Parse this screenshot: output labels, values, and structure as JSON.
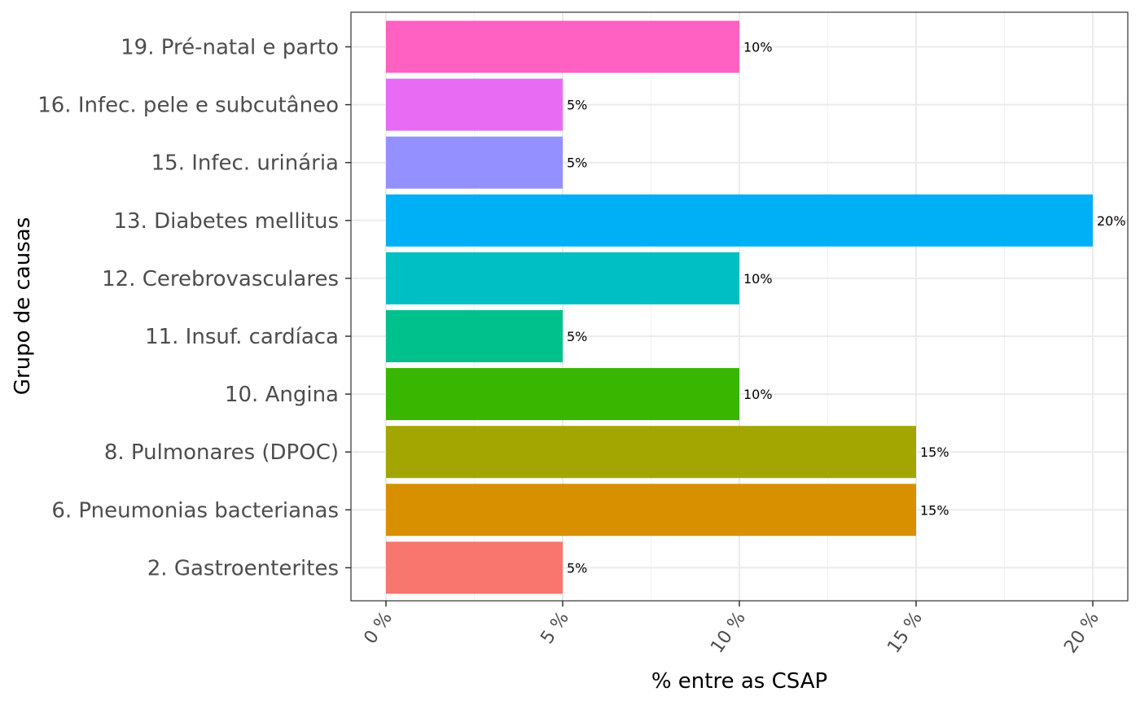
{
  "chart_data": {
    "type": "bar",
    "orientation": "horizontal",
    "title": "",
    "xlabel": "% entre as CSAP",
    "ylabel": "Grupo de causas",
    "xlim": [
      0,
      20
    ],
    "x_ticks": [
      0,
      5,
      10,
      15,
      20
    ],
    "x_tick_labels": [
      "0 %",
      "5 %",
      "10 %",
      "15 %",
      "20 %"
    ],
    "grid": true,
    "legend": "none",
    "categories": [
      "19. Pré-natal e parto",
      "16. Infec. pele e subcutâneo",
      "15. Infec. urinária",
      "13. Diabetes mellitus",
      "12. Cerebrovasculares",
      "11. Insuf. cardíaca",
      "10. Angina",
      "8. Pulmonares (DPOC)",
      "6. Pneumonias bacterianas",
      "2. Gastroenterites"
    ],
    "values": [
      10,
      5,
      5,
      20,
      10,
      5,
      10,
      15,
      15,
      5
    ],
    "data_labels": [
      "10%",
      "5%",
      "5%",
      "20%",
      "10%",
      "5%",
      "10%",
      "15%",
      "15%",
      "5%"
    ],
    "colors": [
      "#FF61C3",
      "#E76BF3",
      "#9590FF",
      "#00B0F6",
      "#00BFC4",
      "#00C08B",
      "#39B600",
      "#A3A500",
      "#D89000",
      "#F8766D"
    ]
  }
}
